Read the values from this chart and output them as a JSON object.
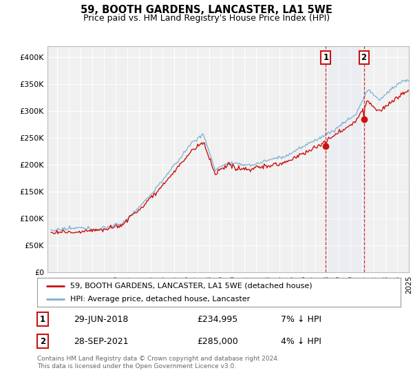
{
  "title": "59, BOOTH GARDENS, LANCASTER, LA1 5WE",
  "subtitle": "Price paid vs. HM Land Registry's House Price Index (HPI)",
  "ylim": [
    0,
    420000
  ],
  "yticks": [
    0,
    50000,
    100000,
    150000,
    200000,
    250000,
    300000,
    350000,
    400000
  ],
  "ytick_labels": [
    "£0",
    "£50K",
    "£100K",
    "£150K",
    "£200K",
    "£250K",
    "£300K",
    "£350K",
    "£400K"
  ],
  "hpi_color": "#7ab0d4",
  "price_color": "#cc1111",
  "marker1_year_idx": 281,
  "marker1_price": 234995,
  "marker2_year_idx": 320,
  "marker2_price": 285000,
  "legend_label1": "59, BOOTH GARDENS, LANCASTER, LA1 5WE (detached house)",
  "legend_label2": "HPI: Average price, detached house, Lancaster",
  "annotation1_date": "29-JUN-2018",
  "annotation1_price": "£234,995",
  "annotation1_hpi": "7% ↓ HPI",
  "annotation2_date": "28-SEP-2021",
  "annotation2_price": "£285,000",
  "annotation2_hpi": "4% ↓ HPI",
  "footer": "Contains HM Land Registry data © Crown copyright and database right 2024.\nThis data is licensed under the Open Government Licence v3.0.",
  "background_color": "#ffffff",
  "plot_bg_color": "#f0f0f0"
}
